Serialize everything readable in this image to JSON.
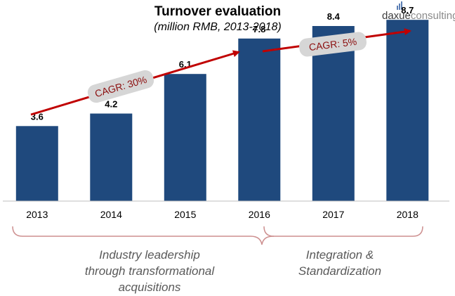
{
  "brand": {
    "name_part1": "daxue",
    "name_part2": "consulting"
  },
  "chart_data": {
    "type": "bar",
    "title": "Turnover evaluation",
    "subtitle": "(million RMB, 2013-2018)",
    "categories": [
      "2013",
      "2014",
      "2015",
      "2016",
      "2017",
      "2018"
    ],
    "values": [
      3.6,
      4.2,
      6.1,
      7.8,
      8.4,
      8.7
    ],
    "data_labels": [
      "3.6",
      "4.2",
      "6.1",
      "7.8",
      "8.4",
      "8.7"
    ],
    "xlabel": "",
    "ylabel": "",
    "ylim": [
      0,
      9.65
    ],
    "grid": false,
    "legend": "none",
    "annotations": [
      {
        "text": "CAGR: 30%",
        "from_category": "2013",
        "to_category": "2016"
      },
      {
        "text": "CAGR: 5%",
        "from_category": "2016",
        "to_category": "2018"
      }
    ],
    "periods": [
      {
        "lines": [
          "Industry leadership",
          "through transformational",
          "acquisitions"
        ],
        "from_category": "2013",
        "to_category": "2016"
      },
      {
        "lines": [
          "Integration &",
          "Standardization"
        ],
        "from_category": "2016",
        "to_category": "2018"
      }
    ]
  },
  "colors": {
    "bar": "#1f497d",
    "arrow": "#c00000",
    "bracket": "#cd8f8f",
    "annotation_text": "#8b0d0d",
    "annotation_bg": "#d6d6d6",
    "period_text": "#595959",
    "brand_accent": "#5b7fb5"
  }
}
